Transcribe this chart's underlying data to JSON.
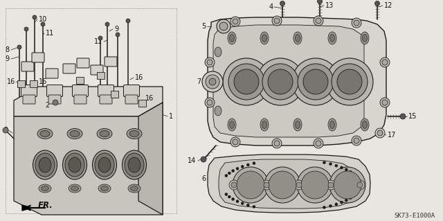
{
  "bg_color": "#e8e6e0",
  "line_color": "#1a1a1a",
  "label_color": "#111111",
  "diagram_code": "SK73-E1000A",
  "font_size": 7.0,
  "figsize": [
    6.4,
    3.19
  ],
  "dpi": 100
}
